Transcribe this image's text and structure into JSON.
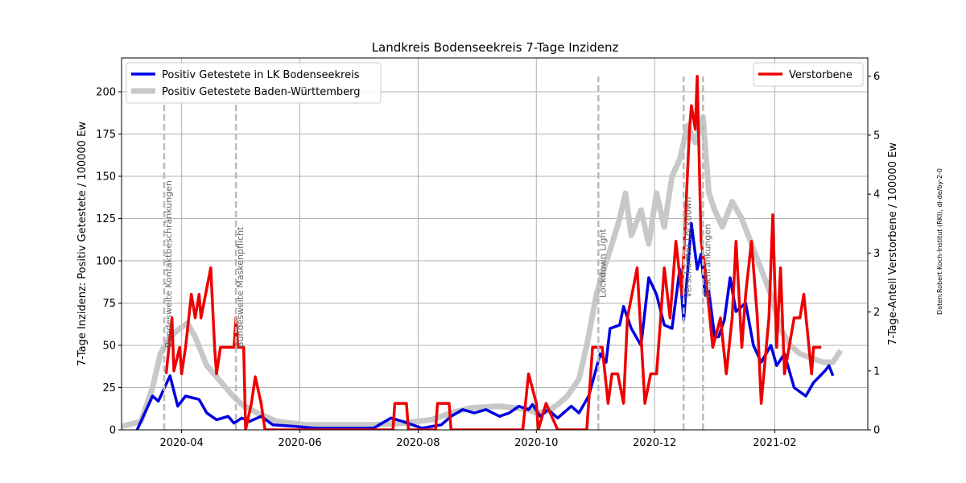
{
  "chart_data": {
    "type": "line",
    "title": "Landkreis Bodenseekreis 7-Tage Inzidenz",
    "y_label": "7-Tage Inzidenz: Positiv Getestete / 100000 Ew",
    "y2_label": "7-Tage-Anteil Verstorbene / 100000 Ew",
    "source": "Daten:Robert Koch-Institut (RKI), dl-de/by-2-0",
    "grid": true,
    "xlim": [
      0,
      385
    ],
    "xticks": [
      {
        "value": 31,
        "label": "2020-04"
      },
      {
        "value": 92,
        "label": "2020-06"
      },
      {
        "value": 153,
        "label": "2020-08"
      },
      {
        "value": 214,
        "label": "2020-10"
      },
      {
        "value": 275,
        "label": "2020-12"
      },
      {
        "value": 337,
        "label": "2021-02"
      }
    ],
    "ylim": [
      0,
      220
    ],
    "yticks": [
      0,
      25,
      50,
      75,
      100,
      125,
      150,
      175,
      200
    ],
    "y2lim": [
      0,
      6.31
    ],
    "y2ticks": [
      0,
      1,
      2,
      3,
      4,
      5,
      6
    ],
    "legend": "upper left",
    "legend2": "upper right",
    "series": [
      {
        "name": "Positiv Getestete Baden-Württemberg",
        "color": "#c8c8c8",
        "axis": "y",
        "x": [
          0,
          10,
          16,
          20,
          25,
          30,
          34,
          38,
          44,
          50,
          56,
          62,
          70,
          80,
          95,
          130,
          145,
          160,
          170,
          180,
          195,
          210,
          214,
          220,
          225,
          230,
          236,
          240,
          245,
          248,
          253,
          257,
          260,
          263,
          268,
          272,
          276,
          280,
          284,
          288,
          292,
          296,
          300,
          303,
          306,
          310,
          315,
          320,
          325,
          330,
          335,
          340,
          345,
          350,
          357,
          362,
          367,
          371
        ],
        "values": [
          2,
          5,
          25,
          45,
          55,
          60,
          63,
          55,
          38,
          30,
          22,
          15,
          10,
          5,
          3,
          3,
          4,
          6,
          10,
          13,
          14,
          12,
          10,
          11,
          15,
          20,
          30,
          50,
          80,
          92,
          110,
          125,
          140,
          115,
          130,
          110,
          140,
          120,
          150,
          160,
          180,
          170,
          185,
          140,
          130,
          120,
          135,
          125,
          110,
          95,
          80,
          60,
          50,
          45,
          42,
          40,
          40,
          47
        ]
      },
      {
        "name": "Positiv Getestete in LK Bodenseekreis",
        "color": "#0000e0",
        "axis": "y",
        "x": [
          8,
          16,
          19,
          25,
          29,
          33,
          40,
          44,
          49,
          55,
          58,
          62,
          66,
          72,
          78,
          90,
          100,
          130,
          139,
          145,
          150,
          155,
          165,
          170,
          176,
          182,
          188,
          195,
          200,
          205,
          210,
          212,
          216,
          220,
          225,
          228,
          232,
          236,
          241,
          247,
          250,
          252,
          257,
          259,
          263,
          268,
          272,
          276,
          280,
          284,
          288,
          290,
          294,
          297,
          299,
          301,
          303,
          306,
          308,
          311,
          314,
          317,
          322,
          326,
          330,
          335,
          338,
          342,
          347,
          353,
          357,
          363,
          365,
          367
        ],
        "values": [
          0,
          20,
          17,
          32,
          14,
          20,
          18,
          10,
          6,
          8,
          4,
          7,
          5,
          8,
          3,
          2,
          1,
          1,
          7,
          5,
          3,
          1,
          3,
          8,
          12,
          10,
          12,
          8,
          10,
          14,
          12,
          15,
          8,
          12,
          7,
          10,
          14,
          10,
          20,
          45,
          40,
          60,
          62,
          73,
          60,
          50,
          90,
          80,
          62,
          60,
          95,
          65,
          122,
          95,
          104,
          80,
          82,
          55,
          55,
          65,
          90,
          70,
          75,
          50,
          40,
          50,
          38,
          45,
          25,
          20,
          28,
          35,
          38,
          32
        ]
      },
      {
        "name": "Verstorbene",
        "color": "#ee0000",
        "axis": "y2",
        "x": [
          23,
          26,
          27,
          30,
          31,
          33,
          36,
          38,
          40,
          41,
          46,
          48,
          49,
          51,
          58,
          59,
          60,
          63,
          64,
          67,
          69,
          72,
          74,
          140,
          141,
          147,
          148,
          162,
          163,
          169,
          170,
          207,
          210,
          214,
          215,
          219,
          225,
          240,
          243,
          248,
          251,
          253,
          256,
          259,
          261,
          266,
          270,
          273,
          276,
          280,
          283,
          286,
          289,
          291,
          293,
          294,
          296,
          297,
          299,
          301,
          305,
          309,
          312,
          315,
          317,
          320,
          322,
          325,
          328,
          330,
          334,
          336,
          338,
          340,
          342,
          347,
          350,
          352,
          356,
          357,
          361
        ],
        "values": [
          0.95,
          1.9,
          1.0,
          1.4,
          0.95,
          1.4,
          2.3,
          1.9,
          2.3,
          1.9,
          2.75,
          1.4,
          0.95,
          1.4,
          1.4,
          1.9,
          1.4,
          1.4,
          0,
          0.45,
          0.9,
          0.45,
          0,
          0,
          0.45,
          0.45,
          0,
          0,
          0.45,
          0.45,
          0,
          0,
          0.95,
          0.45,
          0,
          0.45,
          0,
          0,
          1.4,
          1.4,
          0.45,
          0.95,
          0.95,
          0.45,
          1.9,
          2.75,
          0.45,
          0.95,
          0.95,
          2.75,
          1.9,
          3.2,
          2.3,
          3.65,
          5.1,
          5.5,
          5.1,
          6.0,
          3.2,
          2.75,
          1.4,
          1.9,
          0.95,
          1.9,
          3.2,
          1.4,
          2.3,
          3.2,
          1.9,
          0.45,
          1.9,
          3.65,
          1.4,
          2.75,
          0.95,
          1.9,
          1.9,
          2.3,
          0.95,
          1.4,
          1.4
        ]
      }
    ],
    "annotations": [
      {
        "x": 22,
        "label": "Bundesweite Kontaktbeschränkungen"
      },
      {
        "x": 59,
        "label": "Bundesweite Maskenpflicht"
      },
      {
        "x": 246,
        "label": "Lockdown Light"
      },
      {
        "x": 290,
        "label": "Verschärfter Lockdown"
      },
      {
        "x": 300,
        "label": "Beschränkungen"
      }
    ]
  }
}
